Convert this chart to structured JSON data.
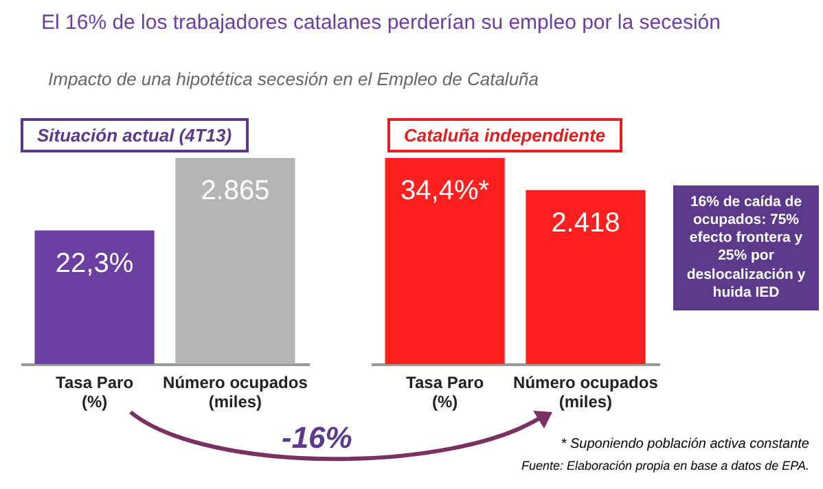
{
  "chart_data": [
    {
      "type": "bar",
      "title": "Situación actual (4T13)",
      "annotations": [
        "El 16% de los trabajadores catalanes perderían su empleo por la secesión",
        "Impacto de una hipotética secesión en el Empleo de Cataluña"
      ],
      "categories": [
        "Tasa Paro (%)",
        "Número ocupados (miles)"
      ],
      "series": [
        {
          "color": "#6b3fa0",
          "values": [
            22.3,
            null
          ],
          "value_labels": [
            "22,3%",
            null
          ]
        },
        {
          "color": "#b5b5b5",
          "values": [
            null,
            2865
          ],
          "axis": "y2",
          "value_labels": [
            null,
            "2.865"
          ]
        }
      ],
      "tick_labels": "x"
    },
    {
      "type": "bar",
      "title": "Cataluña independiente",
      "annotations": [
        "16% de caída de ocupados: 75% efecto frontera y 25% por deslocalización y huida IED",
        "-16%",
        "* Suponiendo población activa constante",
        "Fuente: Elaboración propia en base a datos de EPA."
      ],
      "categories": [
        "Tasa Paro (%)",
        "Número ocupados (miles)"
      ],
      "series": [
        {
          "color": "#ff1f1f",
          "values": [
            34.4,
            null
          ],
          "value_labels": [
            "34,4%*",
            null
          ]
        },
        {
          "color": "#ff1f1f",
          "values": [
            null,
            2418
          ],
          "axis": "y2",
          "value_labels": [
            null,
            "2.418"
          ]
        }
      ],
      "tick_labels": "x"
    }
  ]
}
